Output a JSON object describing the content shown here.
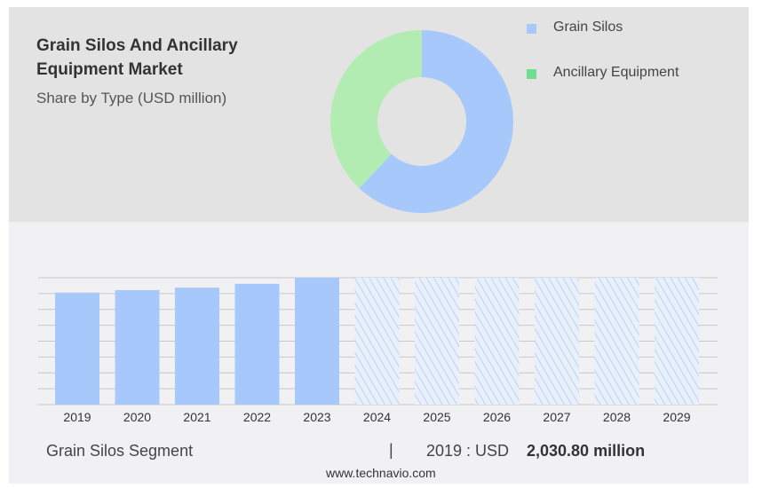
{
  "title": "Grain Silos And Ancillary Equipment Market",
  "subtitle": "Share by Type (USD million)",
  "colors": {
    "grain": "#a6c8fa",
    "ancillary": "#b3ecb3",
    "ancillary_legend": "#6fde8f",
    "forecast": "#a6c8fa"
  },
  "chart_data": [
    {
      "type": "pie",
      "title": "Share by Type (USD million)",
      "donut": true,
      "labels": [
        "Grain Silos",
        "Ancillary Equipment"
      ],
      "values": [
        62,
        38
      ],
      "legend": "right"
    },
    {
      "type": "bar",
      "title": "Grain Silos Segment",
      "categories": [
        "2019",
        "2020",
        "2021",
        "2022",
        "2023",
        "2024",
        "2025",
        "2026",
        "2027",
        "2028",
        "2029"
      ],
      "values": [
        2030.8,
        2075,
        2120,
        2190,
        2300,
        null,
        null,
        null,
        null,
        null,
        null
      ],
      "forecast": [
        "2024",
        "2025",
        "2026",
        "2027",
        "2028",
        "2029"
      ],
      "ylim": [
        0,
        2300
      ],
      "grid": true
    }
  ],
  "footer": {
    "segment": "Grain Silos Segment",
    "sep": "|",
    "year_label": "2019 : USD",
    "value": "2,030.80 million",
    "site": "www.technavio.com"
  }
}
